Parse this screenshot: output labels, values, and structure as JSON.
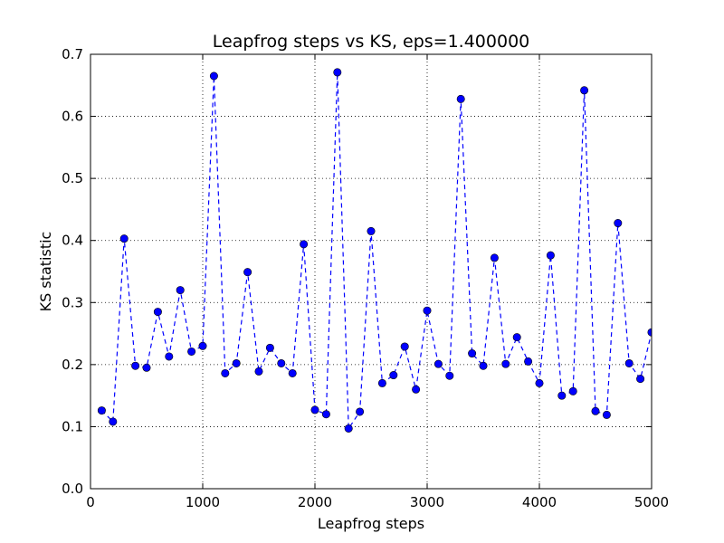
{
  "chart_data": {
    "type": "line",
    "title": "Leapfrog steps vs KS, eps=1.400000",
    "xlabel": "Leapfrog steps",
    "ylabel": "KS statistic",
    "xlim": [
      0,
      5000
    ],
    "ylim": [
      0,
      0.7
    ],
    "xticks": [
      0,
      1000,
      2000,
      3000,
      4000,
      5000
    ],
    "xtick_labels": [
      "0",
      "1000",
      "2000",
      "3000",
      "4000",
      "5000"
    ],
    "yticks": [
      0.0,
      0.1,
      0.2,
      0.3,
      0.4,
      0.5,
      0.6,
      0.7
    ],
    "ytick_labels": [
      "0.0",
      "0.1",
      "0.2",
      "0.3",
      "0.4",
      "0.5",
      "0.6",
      "0.7"
    ],
    "grid": true,
    "line_style": "dashed",
    "marker": "circle",
    "color": "#0000ff",
    "series": [
      {
        "x": [
          100,
          200,
          300,
          400,
          500,
          600,
          700,
          800,
          900,
          1000,
          1100,
          1200,
          1300,
          1400,
          1500,
          1600,
          1700,
          1800,
          1900,
          2000,
          2100,
          2200,
          2300,
          2400,
          2500,
          2600,
          2700,
          2800,
          2900,
          3000,
          3100,
          3200,
          3300,
          3400,
          3500,
          3600,
          3700,
          3800,
          3900,
          4000,
          4100,
          4200,
          4300,
          4400,
          4500,
          4600,
          4700,
          4800,
          4900,
          5000
        ],
        "values": [
          0.126,
          0.108,
          0.403,
          0.198,
          0.195,
          0.285,
          0.213,
          0.32,
          0.221,
          0.23,
          0.665,
          0.186,
          0.202,
          0.349,
          0.189,
          0.227,
          0.202,
          0.186,
          0.394,
          0.127,
          0.12,
          0.671,
          0.097,
          0.124,
          0.415,
          0.17,
          0.183,
          0.229,
          0.16,
          0.287,
          0.201,
          0.182,
          0.628,
          0.218,
          0.198,
          0.372,
          0.201,
          0.244,
          0.205,
          0.17,
          0.376,
          0.15,
          0.157,
          0.642,
          0.125,
          0.119,
          0.428,
          0.202,
          0.177,
          0.252
        ]
      }
    ]
  }
}
